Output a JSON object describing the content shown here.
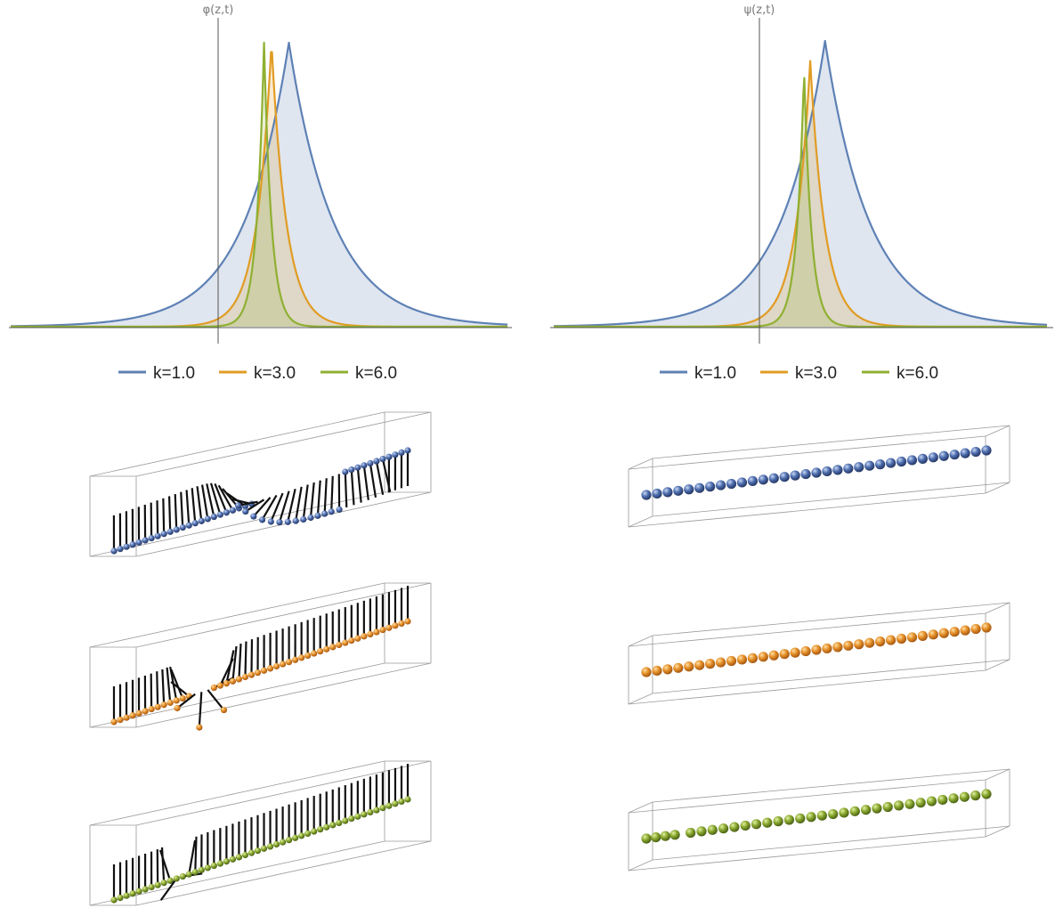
{
  "colors": {
    "blue": "#5e81b5",
    "orange": "#e19c24",
    "green": "#8fb032"
  },
  "chart_data": [
    {
      "type": "line",
      "title": "",
      "ylabel": "φ(z,t)",
      "xlabel": "",
      "xlim": [
        -1,
        1
      ],
      "ylim": [
        0,
        1
      ],
      "grid": false,
      "filled": true,
      "legend_position": "bottom",
      "series": [
        {
          "name": "k=1.0",
          "k": 1.0,
          "peak_x": 0.12,
          "peak_y": 1.0,
          "color": "blue"
        },
        {
          "name": "k=3.0",
          "k": 3.0,
          "peak_x": 0.05,
          "peak_y": 1.0,
          "color": "orange"
        },
        {
          "name": "k=6.0",
          "k": 6.0,
          "peak_x": 0.02,
          "peak_y": 1.0,
          "color": "green"
        }
      ]
    },
    {
      "type": "line",
      "title": "",
      "ylabel": "ψ(z,t)",
      "xlabel": "",
      "xlim": [
        -1,
        1
      ],
      "ylim": [
        0,
        1
      ],
      "grid": false,
      "filled": true,
      "legend_position": "bottom",
      "series": [
        {
          "name": "k=1.0",
          "k": 1.0,
          "peak_x": 0.1,
          "peak_y": 1.0,
          "color": "blue"
        },
        {
          "name": "k=3.0",
          "k": 3.0,
          "peak_x": 0.04,
          "peak_y": 0.93,
          "color": "orange"
        },
        {
          "name": "k=6.0",
          "k": 6.0,
          "peak_x": 0.015,
          "peak_y": 0.9,
          "color": "green"
        }
      ]
    },
    {
      "type": "scatter",
      "title": "",
      "description": "3D spin chains (left column, with sticks) and particle chains (right column) inside bounding boxes",
      "rows": [
        {
          "k": 1.0,
          "color": "blue",
          "left_spheres": 48,
          "right_spheres": 33
        },
        {
          "k": 3.0,
          "color": "orange",
          "left_spheres": 48,
          "right_spheres": 33
        },
        {
          "k": 6.0,
          "color": "green",
          "left_spheres": 48,
          "right_spheres": 32
        }
      ]
    }
  ]
}
